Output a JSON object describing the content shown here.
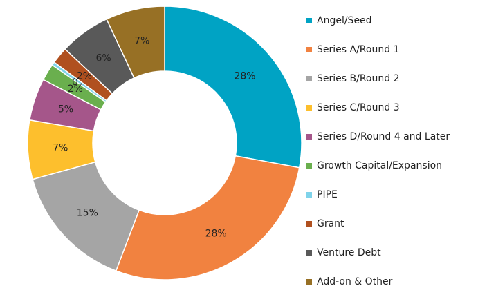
{
  "chart_data": {
    "type": "donut",
    "categories": [
      "Angel/Seed",
      "Series A/Round 1",
      "Series B/Round 2",
      "Series C/Round 3",
      "Series D/Round 4 and Later",
      "Growth Capital/Expansion",
      "PIPE",
      "Grant",
      "Venture Debt",
      "Add-on & Other"
    ],
    "values": [
      28,
      28,
      15,
      7,
      5,
      2,
      0.4,
      2,
      6,
      7
    ],
    "value_labels": [
      "28%",
      "28%",
      "15%",
      "7%",
      "5%",
      "2%",
      "0%",
      "2%",
      "6%",
      "7%"
    ],
    "colors": [
      "#00a3c4",
      "#f18240",
      "#a5a5a5",
      "#fdbf2d",
      "#a5568a",
      "#6aaf4e",
      "#7fd3ea",
      "#b0501f",
      "#595959",
      "#977025"
    ],
    "legend": "right"
  }
}
